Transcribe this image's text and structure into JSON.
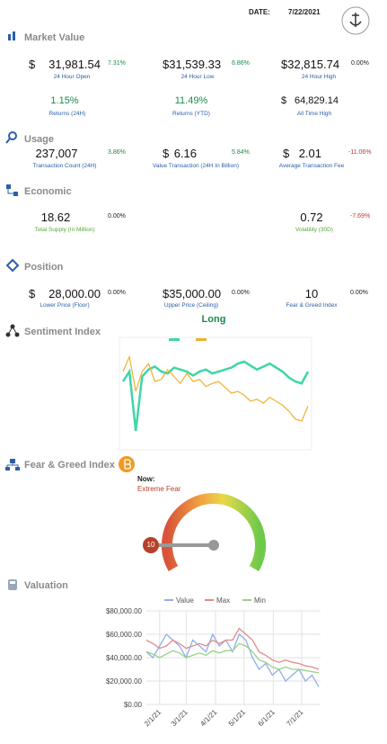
{
  "header": {
    "date_label": "DATE:",
    "date": "7/22/2021"
  },
  "market_value": {
    "title": "Market Value",
    "items": [
      {
        "currency": "$",
        "value": "31,981.54",
        "change": "7.31%",
        "label": "24 Hour Open"
      },
      {
        "value": "$31,539.33",
        "change": "6.86%",
        "label": "24 Hour Low"
      },
      {
        "value": "$32,815.74",
        "change": "0.00%",
        "label": "24 Hour High"
      },
      {
        "value": "1.15%",
        "label": "Returns (24H)"
      },
      {
        "value": "11.49%",
        "label": "Returns (YTD)"
      },
      {
        "currency": "$",
        "value": "64,829.14",
        "label": "All Time High"
      }
    ]
  },
  "usage": {
    "title": "Usage",
    "items": [
      {
        "value": "237,007",
        "change": "3.86%",
        "label": "Transaction Count (24H)"
      },
      {
        "currency": "$",
        "value": "6.16",
        "change": "5.84%",
        "label": "Value Transaction (24H In Billion)"
      },
      {
        "currency": "$",
        "value": "2.01",
        "change": "-11.06%",
        "label": "Average Transaction Fee"
      }
    ]
  },
  "economic": {
    "title": "Economic",
    "items": [
      {
        "value": "18.62",
        "change": "0.00%",
        "label": "Total Supply (In Million)"
      },
      {
        "value": "0.72",
        "change": "-7.69%",
        "label": "Volatility (30D)"
      }
    ]
  },
  "position": {
    "title": "Position",
    "items": [
      {
        "currency": "$",
        "value": "28,000.00",
        "change": "0.00%",
        "label": "Lower Price (Floor)"
      },
      {
        "value": "$35,000.00",
        "change": "0.00%",
        "label": "Upper Price (Ceiling)"
      },
      {
        "value": "10",
        "change": "0.00%",
        "label": "Fear & Greed Index"
      }
    ]
  },
  "sentiment": {
    "title": "Sentiment Index",
    "signal": "Long",
    "chart_data": {
      "type": "line",
      "ylim": [
        0,
        100
      ],
      "series": [
        {
          "color": "#3ed6a6",
          "values": [
            60,
            70,
            10,
            65,
            72,
            75,
            70,
            68,
            74,
            72,
            70,
            66,
            70,
            72,
            68,
            70,
            72,
            74,
            78,
            80,
            76,
            72,
            75,
            78,
            74,
            70,
            64,
            60,
            58,
            70
          ]
        },
        {
          "color": "#f0b030",
          "values": [
            70,
            85,
            50,
            70,
            78,
            60,
            62,
            72,
            65,
            58,
            68,
            60,
            62,
            55,
            58,
            60,
            54,
            48,
            50,
            46,
            40,
            42,
            38,
            44,
            40,
            36,
            30,
            22,
            20,
            35
          ]
        }
      ]
    }
  },
  "fear_greed": {
    "title": "Fear & Greed Index",
    "now_label": "Now:",
    "status": "Extreme Fear",
    "value": "10"
  },
  "valuation": {
    "title": "Valuation",
    "chart_data": {
      "type": "line",
      "x": [
        "1/18/21",
        "1/25/21",
        "2/1/21",
        "2/8/21",
        "2/15/21",
        "2/22/21",
        "3/1/21",
        "3/8/21",
        "3/15/21",
        "3/22/21",
        "3/29/21",
        "4/5/21",
        "4/12/21",
        "4/19/21",
        "4/26/21",
        "5/3/21",
        "5/10/21",
        "5/17/21",
        "5/24/21",
        "5/31/21",
        "6/7/21",
        "6/14/21",
        "6/21/21",
        "6/28/21",
        "7/5/21",
        "7/12/21",
        "7/19/21"
      ],
      "series": [
        {
          "name": "Value",
          "color": "#8fb0e8",
          "values": [
            45000,
            40000,
            50000,
            60000,
            55000,
            50000,
            40000,
            55000,
            50000,
            45000,
            60000,
            50000,
            55000,
            45000,
            60000,
            55000,
            40000,
            30000,
            35000,
            25000,
            30000,
            20000,
            25000,
            30000,
            20000,
            25000,
            15000
          ]
        },
        {
          "name": "Max",
          "color": "#e48a8a",
          "values": [
            55000,
            52000,
            48000,
            50000,
            55000,
            52000,
            48000,
            50000,
            52000,
            50000,
            55000,
            52000,
            55000,
            55000,
            65000,
            60000,
            55000,
            45000,
            42000,
            38000,
            36000,
            38000,
            36000,
            35000,
            33000,
            32000,
            30000
          ]
        },
        {
          "name": "Min",
          "color": "#9ad08a",
          "values": [
            45000,
            43000,
            40000,
            43000,
            46000,
            44000,
            40000,
            42000,
            44000,
            42000,
            46000,
            44000,
            46000,
            46000,
            52000,
            50000,
            45000,
            38000,
            36000,
            32000,
            30000,
            32000,
            30000,
            30000,
            29000,
            28000,
            27000
          ]
        }
      ],
      "ylim": [
        0,
        80000
      ],
      "yticks": [
        {
          "value": 0,
          "label": "$0.00"
        },
        {
          "value": 20000,
          "label": "$20,000.00"
        },
        {
          "value": 40000,
          "label": "$40,000.00"
        },
        {
          "value": 60000,
          "label": "$60,000.00"
        },
        {
          "value": 80000,
          "label": "$80,000.00"
        }
      ],
      "xticks": [
        "2/1/21",
        "3/1/21",
        "4/1/21",
        "5/1/21",
        "6/1/21",
        "7/1/21"
      ],
      "grid": true
    }
  }
}
